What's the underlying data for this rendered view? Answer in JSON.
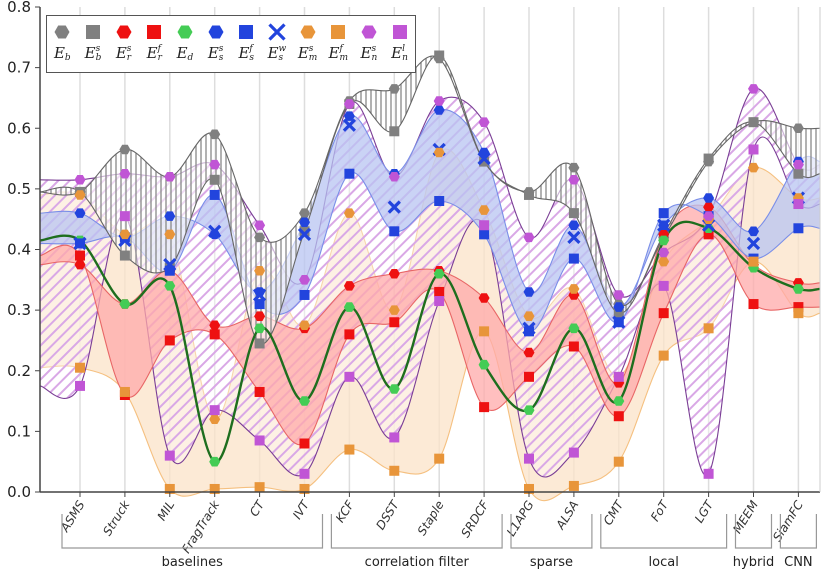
{
  "chart_data": {
    "type": "line",
    "title": "",
    "xlabel": "",
    "ylabel": "",
    "ylim": [
      0,
      0.8
    ],
    "yticks": [
      "0.0",
      "0.1",
      "0.2",
      "0.3",
      "0.4",
      "0.5",
      "0.6",
      "0.7",
      "0.8"
    ],
    "grid": "vertical",
    "legend_position": "top-left",
    "categories": [
      "ASMS",
      "Struck",
      "MIL",
      "FragTrack",
      "CT",
      "IVT",
      "KCF",
      "DSST",
      "Staple",
      "SRDCF",
      "L1APG",
      "ALSA",
      "CMT",
      "FoT",
      "LGT",
      "MEEM",
      "SiamFC"
    ],
    "groups": [
      {
        "label": "baselines",
        "from": 0,
        "to": 5
      },
      {
        "label": "correlation filter",
        "from": 6,
        "to": 9
      },
      {
        "label": "sparse",
        "from": 10,
        "to": 11
      },
      {
        "label": "local",
        "from": 12,
        "to": 14
      },
      {
        "label": "hybrid",
        "from": 15,
        "to": 15
      },
      {
        "label": "CNN",
        "from": 16,
        "to": 16
      }
    ],
    "series": [
      {
        "key": "Eb",
        "name": {
          "base": "E",
          "sub": "b",
          "sup": ""
        },
        "marker": "hexagon",
        "color": "#808080",
        "values": [
          0.495,
          0.565,
          0.52,
          0.59,
          0.42,
          0.46,
          0.645,
          0.665,
          0.715,
          0.545,
          0.495,
          0.535,
          0.31,
          0.42,
          0.545,
          0.61,
          0.6
        ]
      },
      {
        "key": "Ebs",
        "name": {
          "base": "E",
          "sub": "b",
          "sup": "s"
        },
        "marker": "square",
        "color": "#808080",
        "values": [
          0.495,
          0.39,
          0.37,
          0.515,
          0.245,
          0.43,
          0.64,
          0.595,
          0.72,
          0.545,
          0.49,
          0.46,
          0.295,
          0.425,
          0.55,
          0.61,
          0.525
        ]
      },
      {
        "key": "Ers",
        "name": {
          "base": "E",
          "sub": "r",
          "sup": "s"
        },
        "marker": "hexagon",
        "color": "#ee1111",
        "values": [
          0.375,
          0.31,
          0.365,
          0.275,
          0.29,
          0.27,
          0.34,
          0.36,
          0.365,
          0.32,
          0.23,
          0.325,
          0.18,
          0.425,
          0.47,
          0.375,
          0.345
        ]
      },
      {
        "key": "Erf",
        "name": {
          "base": "E",
          "sub": "r",
          "sup": "f"
        },
        "marker": "square",
        "color": "#ee1111",
        "values": [
          0.39,
          0.16,
          0.25,
          0.26,
          0.165,
          0.08,
          0.26,
          0.28,
          0.33,
          0.14,
          0.19,
          0.24,
          0.125,
          0.295,
          0.425,
          0.31,
          0.305
        ]
      },
      {
        "key": "Ed",
        "name": {
          "base": "E",
          "sub": "d",
          "sup": ""
        },
        "marker": "hexagon",
        "color": "#44cc55",
        "values": [
          0.415,
          0.31,
          0.34,
          0.05,
          0.27,
          0.15,
          0.305,
          0.17,
          0.36,
          0.21,
          0.135,
          0.27,
          0.15,
          0.415,
          0.435,
          0.37,
          0.335
        ]
      },
      {
        "key": "Ess",
        "name": {
          "base": "E",
          "sub": "s",
          "sup": "s"
        },
        "marker": "hexagon",
        "color": "#2244dd",
        "values": [
          0.46,
          0.42,
          0.455,
          0.425,
          0.33,
          0.445,
          0.62,
          0.525,
          0.63,
          0.56,
          0.33,
          0.44,
          0.305,
          0.44,
          0.485,
          0.43,
          0.545
        ]
      },
      {
        "key": "Esf",
        "name": {
          "base": "E",
          "sub": "s",
          "sup": "f"
        },
        "marker": "square",
        "color": "#2244dd",
        "values": [
          0.41,
          0.42,
          0.365,
          0.49,
          0.31,
          0.325,
          0.525,
          0.43,
          0.48,
          0.425,
          0.265,
          0.385,
          0.28,
          0.46,
          0.455,
          0.385,
          0.435
        ]
      },
      {
        "key": "Esw",
        "name": {
          "base": "E",
          "sub": "s",
          "sup": "w"
        },
        "marker": "cross",
        "color": "#2244dd",
        "values": [
          0.41,
          0.415,
          0.375,
          0.43,
          0.325,
          0.425,
          0.605,
          0.47,
          0.565,
          0.55,
          0.27,
          0.42,
          0.28,
          0.44,
          0.44,
          0.41,
          0.485
        ]
      },
      {
        "key": "Ems",
        "name": {
          "base": "E",
          "sub": "m",
          "sup": "s"
        },
        "marker": "hexagon",
        "color": "#e8953a",
        "values": [
          0.49,
          0.425,
          0.425,
          0.12,
          0.365,
          0.275,
          0.46,
          0.3,
          0.56,
          0.465,
          0.29,
          0.335,
          0.19,
          0.38,
          0.45,
          0.535,
          0.485
        ]
      },
      {
        "key": "Emf",
        "name": {
          "base": "E",
          "sub": "m",
          "sup": "f"
        },
        "marker": "square",
        "color": "#e8953a",
        "values": [
          0.205,
          0.165,
          0.005,
          0.005,
          0.008,
          0.005,
          0.07,
          0.035,
          0.055,
          0.265,
          0.005,
          0.01,
          0.05,
          0.225,
          0.27,
          0.38,
          0.295
        ]
      },
      {
        "key": "Ens",
        "name": {
          "base": "E",
          "sub": "n",
          "sup": "s"
        },
        "marker": "hexagon",
        "color": "#c055d5",
        "values": [
          0.515,
          0.525,
          0.52,
          0.54,
          0.44,
          0.35,
          0.64,
          0.52,
          0.645,
          0.61,
          0.42,
          0.515,
          0.325,
          0.395,
          0.455,
          0.665,
          0.54
        ]
      },
      {
        "key": "Enl",
        "name": {
          "base": "E",
          "sub": "n",
          "sup": "l"
        },
        "marker": "square",
        "color": "#c055d5",
        "values": [
          0.175,
          0.455,
          0.06,
          0.135,
          0.085,
          0.03,
          0.19,
          0.09,
          0.315,
          0.44,
          0.055,
          0.065,
          0.19,
          0.34,
          0.03,
          0.565,
          0.475
        ]
      }
    ],
    "bands": [
      {
        "upper": "Ems",
        "lower": "Emf",
        "fill": "#fbe3c8",
        "style": "solid",
        "edge": "#f5c080"
      },
      {
        "upper": "Ens",
        "lower": "Enl",
        "fill": "#c055d5",
        "style": "hatch-diagonal",
        "edge": "#7a3e95"
      },
      {
        "upper": "Ers",
        "lower": "Erf",
        "fill": "#ffaaaa",
        "style": "solid",
        "edge": "#e86666"
      },
      {
        "upper": "Ess",
        "lower": "Esf",
        "fill": "#b8c4f2",
        "style": "solid",
        "edge": "#7a8ee8"
      },
      {
        "upper": "Eb",
        "lower": "Ebs",
        "fill": "#777777",
        "style": "hatch-vertical",
        "edge": "#666666"
      }
    ],
    "line": {
      "series": "Ed",
      "color": "#1e6e1e"
    }
  }
}
